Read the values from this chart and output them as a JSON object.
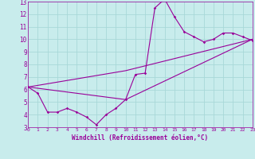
{
  "xlabel": "Windchill (Refroidissement éolien,°C)",
  "bg_color": "#c8ecec",
  "grid_color": "#a8d8d8",
  "line_color": "#990099",
  "x_min": 0,
  "x_max": 23,
  "y_min": 3,
  "y_max": 13,
  "series1_x": [
    0,
    1,
    2,
    3,
    4,
    5,
    6,
    7,
    8,
    9,
    10,
    11,
    12,
    13,
    14,
    15,
    16,
    17,
    18,
    19,
    20,
    21,
    22,
    23
  ],
  "series1_y": [
    6.2,
    5.7,
    4.2,
    4.2,
    4.5,
    4.2,
    3.8,
    3.2,
    4.0,
    4.5,
    5.2,
    7.2,
    7.3,
    12.5,
    13.2,
    11.8,
    10.6,
    10.2,
    9.8,
    10.0,
    10.5,
    10.5,
    10.2,
    9.9
  ],
  "series2_x": [
    0,
    10,
    23
  ],
  "series2_y": [
    6.2,
    7.5,
    10.0
  ],
  "series3_x": [
    0,
    10,
    23
  ],
  "series3_y": [
    6.2,
    5.2,
    10.0
  ],
  "yticks": [
    3,
    4,
    5,
    6,
    7,
    8,
    9,
    10,
    11,
    12,
    13
  ],
  "xticks": [
    0,
    1,
    2,
    3,
    4,
    5,
    6,
    7,
    8,
    9,
    10,
    11,
    12,
    13,
    14,
    15,
    16,
    17,
    18,
    19,
    20,
    21,
    22,
    23
  ]
}
